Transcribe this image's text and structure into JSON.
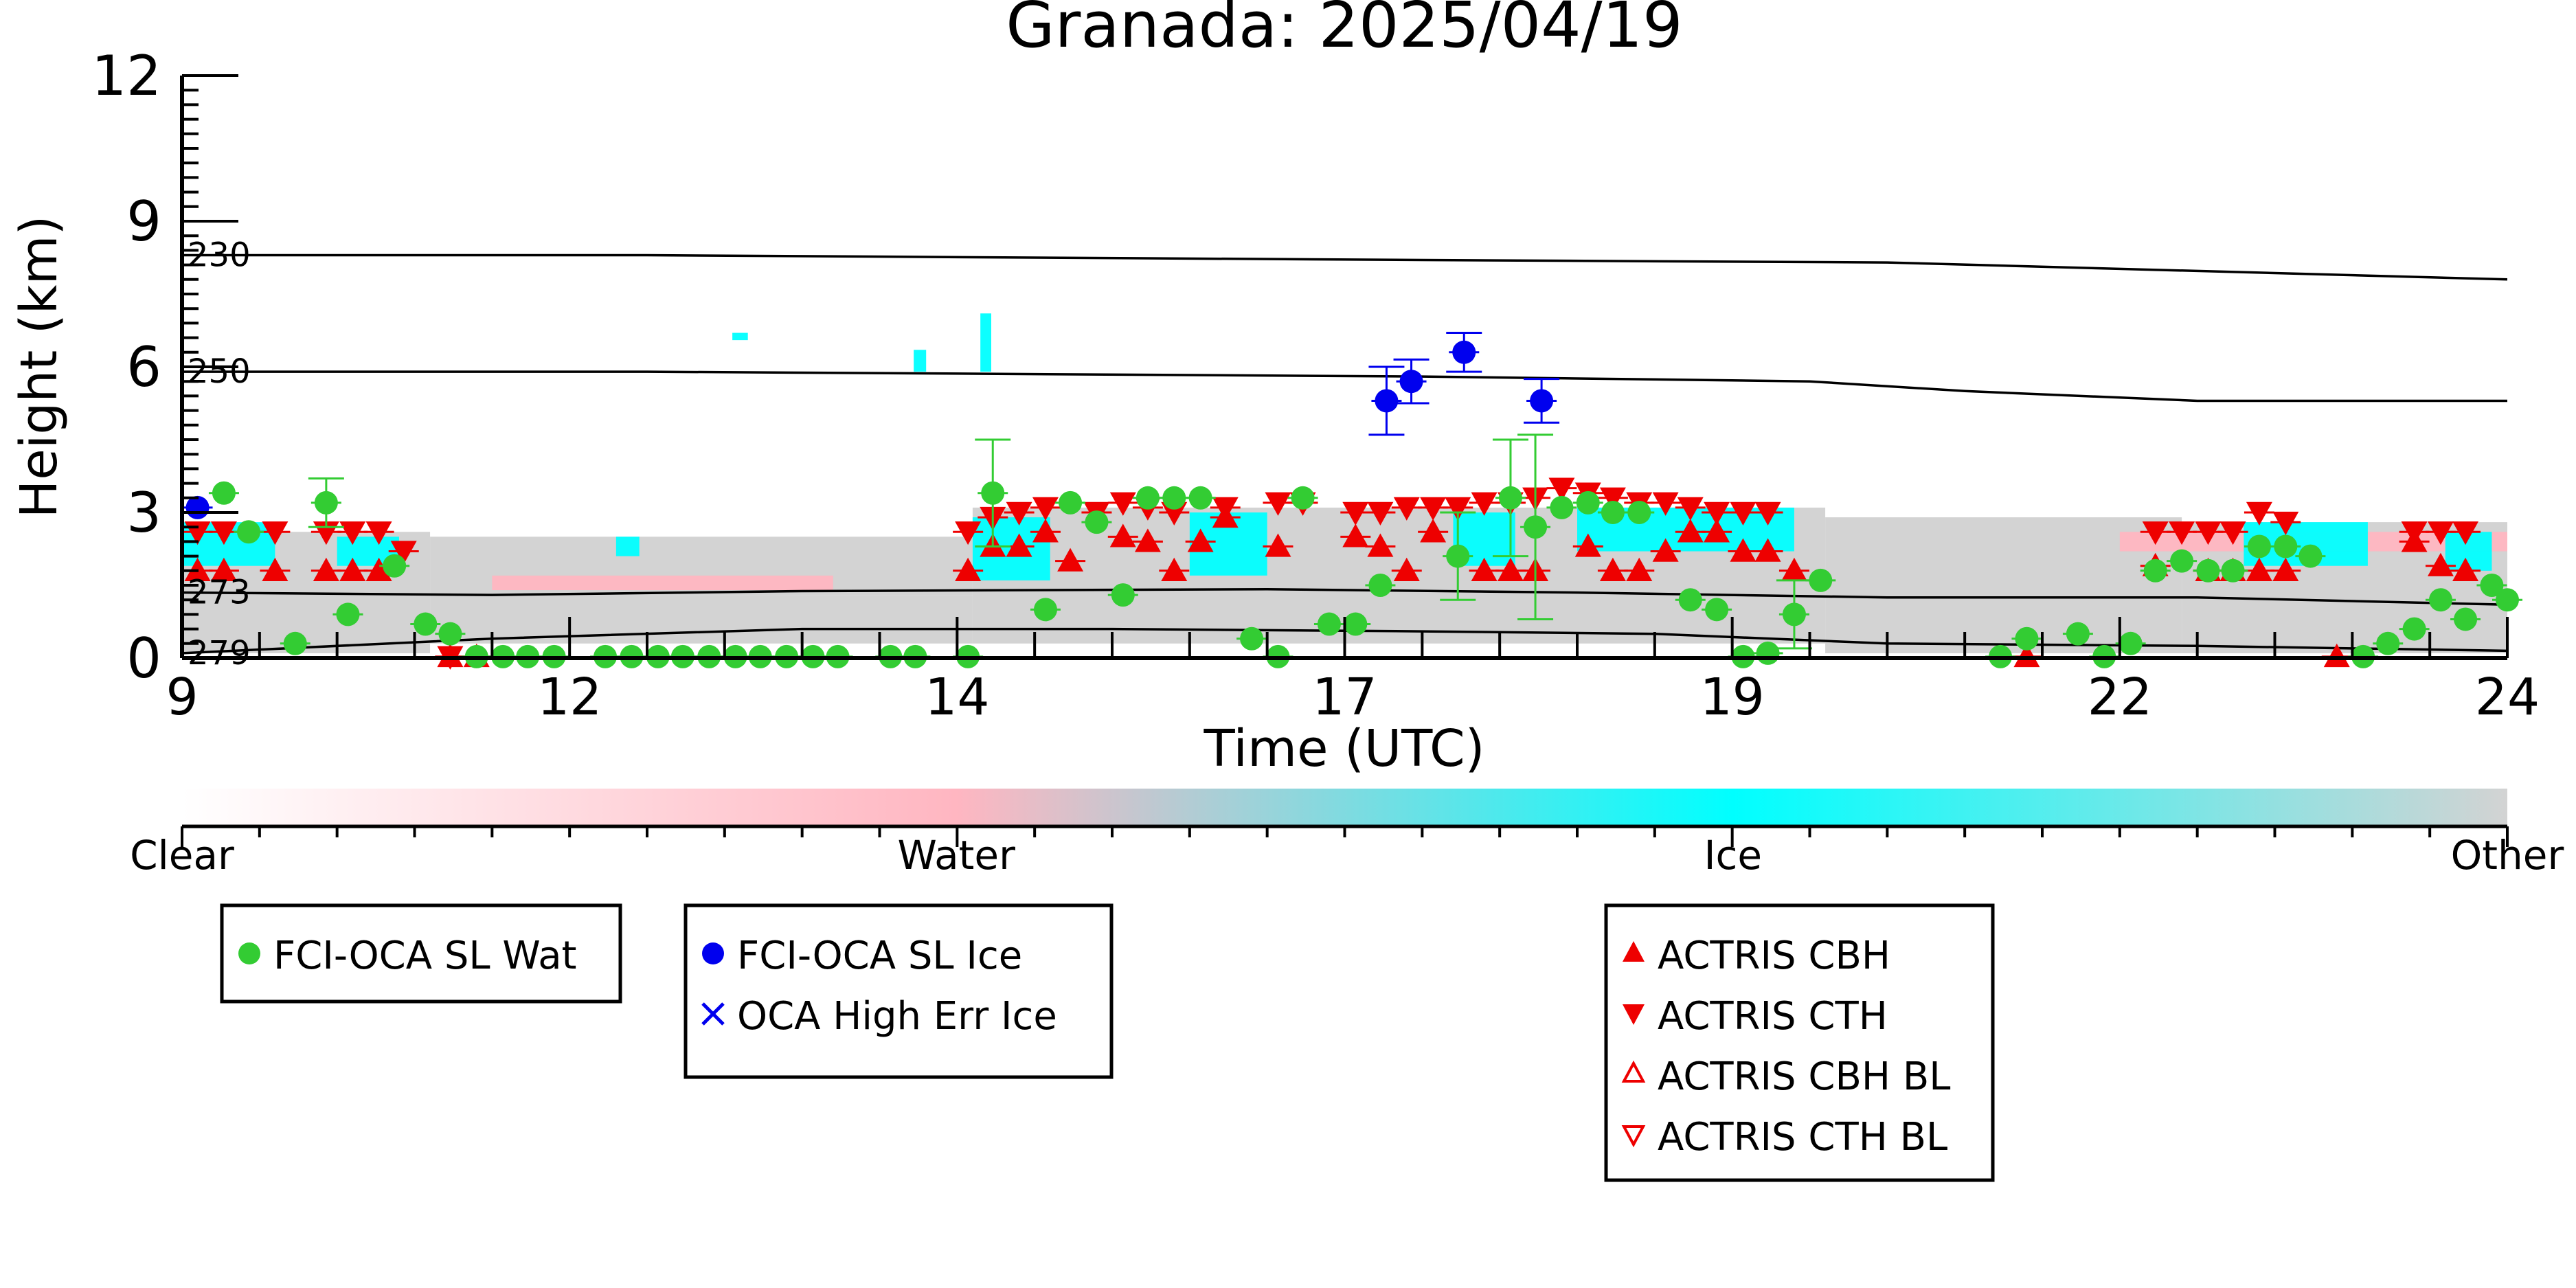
{
  "chart_data": {
    "type": "scatter",
    "title": "Granada: 2025/04/19",
    "xlabel": "Time (UTC)",
    "ylabel": "Height (km)",
    "xlim": [
      9,
      24
    ],
    "ylim": [
      0,
      12
    ],
    "xtick_labels": [
      {
        "value": 9,
        "label": "9"
      },
      {
        "value": 11.5,
        "label": "12"
      },
      {
        "value": 14,
        "label": "14"
      },
      {
        "value": 16.5,
        "label": "17"
      },
      {
        "value": 19,
        "label": "19"
      },
      {
        "value": 21.5,
        "label": "22"
      },
      {
        "value": 24,
        "label": "24"
      }
    ],
    "ytick_labels": [
      {
        "value": 0,
        "label": "0"
      },
      {
        "value": 3,
        "label": "3"
      },
      {
        "value": 6,
        "label": "6"
      },
      {
        "value": 9,
        "label": "9"
      },
      {
        "value": 12,
        "label": "12"
      }
    ],
    "grid": false,
    "isotherms": [
      {
        "label": "230",
        "points": [
          [
            9,
            8.3
          ],
          [
            12,
            8.3
          ],
          [
            17,
            8.2
          ],
          [
            20,
            8.15
          ],
          [
            24,
            7.8
          ]
        ]
      },
      {
        "label": "250",
        "points": [
          [
            9,
            5.9
          ],
          [
            12,
            5.9
          ],
          [
            17,
            5.8
          ],
          [
            19.5,
            5.7
          ],
          [
            20.5,
            5.5
          ],
          [
            22,
            5.3
          ],
          [
            24,
            5.3
          ]
        ]
      },
      {
        "label": "273",
        "points": [
          [
            9,
            1.35
          ],
          [
            11,
            1.3
          ],
          [
            13,
            1.38
          ],
          [
            16,
            1.42
          ],
          [
            18,
            1.35
          ],
          [
            20,
            1.25
          ],
          [
            22,
            1.25
          ],
          [
            24,
            1.1
          ]
        ]
      },
      {
        "label": "279",
        "points": [
          [
            9,
            0.1
          ],
          [
            11,
            0.4
          ],
          [
            13,
            0.6
          ],
          [
            15,
            0.6
          ],
          [
            17,
            0.55
          ],
          [
            18.5,
            0.5
          ],
          [
            20,
            0.3
          ],
          [
            22,
            0.25
          ],
          [
            24,
            0.15
          ]
        ]
      }
    ],
    "colorbar": {
      "stops": [
        {
          "at": 0.0,
          "color": "#ffffff"
        },
        {
          "at": 0.333,
          "color": "#ffb6c1"
        },
        {
          "at": 0.667,
          "color": "#00ffff"
        },
        {
          "at": 1.0,
          "color": "#d3d3d3"
        }
      ],
      "labels": [
        {
          "at": 0.0,
          "text": "Clear"
        },
        {
          "at": 0.333,
          "text": "Water"
        },
        {
          "at": 0.667,
          "text": "Ice"
        },
        {
          "at": 1.0,
          "text": "Other"
        }
      ]
    },
    "class_colors": {
      "water": "#ffb6c1",
      "ice": "#00ffff",
      "other": "#d3d3d3"
    },
    "cloud_layers": [
      {
        "class": "other",
        "x0": 9.0,
        "x1": 10.6,
        "top": 2.6,
        "bottom": 0.1
      },
      {
        "class": "other",
        "x0": 10.6,
        "x1": 14.1,
        "top": 2.5,
        "bottom": 1.3
      },
      {
        "class": "other",
        "x0": 10.6,
        "x1": 14.1,
        "top": 1.3,
        "bottom": 0.3
      },
      {
        "class": "other",
        "x0": 14.1,
        "x1": 19.6,
        "top": 3.1,
        "bottom": 0.3
      },
      {
        "class": "other",
        "x0": 19.6,
        "x1": 21.9,
        "top": 2.9,
        "bottom": 0.1
      },
      {
        "class": "other",
        "x0": 21.9,
        "x1": 24.0,
        "top": 2.8,
        "bottom": 0.1
      },
      {
        "class": "water",
        "x0": 21.5,
        "x1": 24.0,
        "top": 2.6,
        "bottom": 2.2
      },
      {
        "class": "water",
        "x0": 11.0,
        "x1": 13.2,
        "top": 1.7,
        "bottom": 1.4
      },
      {
        "class": "ice",
        "x0": 9.0,
        "x1": 9.6,
        "top": 2.8,
        "bottom": 1.9
      },
      {
        "class": "ice",
        "x0": 10.0,
        "x1": 10.4,
        "top": 2.5,
        "bottom": 1.9
      },
      {
        "class": "ice",
        "x0": 11.8,
        "x1": 11.95,
        "top": 2.5,
        "bottom": 2.1
      },
      {
        "class": "ice",
        "x0": 14.1,
        "x1": 14.6,
        "top": 2.9,
        "bottom": 1.6
      },
      {
        "class": "ice",
        "x0": 15.5,
        "x1": 16.0,
        "top": 3.0,
        "bottom": 1.7
      },
      {
        "class": "ice",
        "x0": 17.2,
        "x1": 17.6,
        "top": 3.0,
        "bottom": 1.9
      },
      {
        "class": "ice",
        "x0": 18.0,
        "x1": 19.4,
        "top": 3.1,
        "bottom": 2.2
      },
      {
        "class": "ice",
        "x0": 22.3,
        "x1": 23.1,
        "top": 2.8,
        "bottom": 1.9
      },
      {
        "class": "ice",
        "x0": 23.6,
        "x1": 23.9,
        "top": 2.6,
        "bottom": 1.8
      },
      {
        "class": "ice",
        "x0": 12.55,
        "x1": 12.65,
        "top": 6.7,
        "bottom": 6.55
      },
      {
        "class": "ice",
        "x0": 13.72,
        "x1": 13.8,
        "top": 6.35,
        "bottom": 5.9
      },
      {
        "class": "ice",
        "x0": 14.15,
        "x1": 14.22,
        "top": 7.1,
        "bottom": 5.9
      }
    ],
    "series": [
      {
        "name": "FCI-OCA SL Wat",
        "marker": "circle",
        "color": "#33cc33",
        "points": [
          {
            "x": 9.27,
            "y": 3.4
          },
          {
            "x": 9.43,
            "y": 2.6
          },
          {
            "x": 9.73,
            "y": 0.3
          },
          {
            "x": 9.93,
            "y": 3.2,
            "err": 0.5
          },
          {
            "x": 10.07,
            "y": 0.9
          },
          {
            "x": 10.37,
            "y": 1.9
          },
          {
            "x": 10.57,
            "y": 0.7
          },
          {
            "x": 10.73,
            "y": 0.5
          },
          {
            "x": 10.9,
            "y": 0.03
          },
          {
            "x": 11.07,
            "y": 0.03
          },
          {
            "x": 11.23,
            "y": 0.03
          },
          {
            "x": 11.4,
            "y": 0.03
          },
          {
            "x": 11.73,
            "y": 0.03
          },
          {
            "x": 11.9,
            "y": 0.03
          },
          {
            "x": 12.07,
            "y": 0.03
          },
          {
            "x": 12.23,
            "y": 0.03
          },
          {
            "x": 12.4,
            "y": 0.03
          },
          {
            "x": 12.57,
            "y": 0.03
          },
          {
            "x": 12.73,
            "y": 0.03
          },
          {
            "x": 12.9,
            "y": 0.03
          },
          {
            "x": 13.07,
            "y": 0.03
          },
          {
            "x": 13.23,
            "y": 0.03
          },
          {
            "x": 13.57,
            "y": 0.03
          },
          {
            "x": 13.73,
            "y": 0.03
          },
          {
            "x": 14.07,
            "y": 0.03
          },
          {
            "x": 14.23,
            "y": 3.4,
            "err": 1.1
          },
          {
            "x": 14.57,
            "y": 1.0
          },
          {
            "x": 14.73,
            "y": 3.2
          },
          {
            "x": 14.9,
            "y": 2.8
          },
          {
            "x": 15.07,
            "y": 1.3
          },
          {
            "x": 15.23,
            "y": 3.3
          },
          {
            "x": 15.4,
            "y": 3.3
          },
          {
            "x": 15.57,
            "y": 3.3
          },
          {
            "x": 15.9,
            "y": 0.4
          },
          {
            "x": 16.07,
            "y": 0.03
          },
          {
            "x": 16.23,
            "y": 3.3
          },
          {
            "x": 16.4,
            "y": 0.7
          },
          {
            "x": 16.57,
            "y": 0.7
          },
          {
            "x": 16.73,
            "y": 1.5
          },
          {
            "x": 17.23,
            "y": 2.1,
            "err": 0.9
          },
          {
            "x": 17.57,
            "y": 3.3,
            "err": 1.2
          },
          {
            "x": 17.73,
            "y": 2.7,
            "err": 1.9
          },
          {
            "x": 17.9,
            "y": 3.1
          },
          {
            "x": 18.07,
            "y": 3.2
          },
          {
            "x": 18.23,
            "y": 3.0
          },
          {
            "x": 18.4,
            "y": 3.0
          },
          {
            "x": 18.73,
            "y": 1.2
          },
          {
            "x": 18.9,
            "y": 1.0
          },
          {
            "x": 19.07,
            "y": 0.03
          },
          {
            "x": 19.23,
            "y": 0.1
          },
          {
            "x": 19.4,
            "y": 0.9,
            "err": 0.7
          },
          {
            "x": 19.57,
            "y": 1.6
          },
          {
            "x": 20.73,
            "y": 0.03
          },
          {
            "x": 20.9,
            "y": 0.4
          },
          {
            "x": 21.23,
            "y": 0.5
          },
          {
            "x": 21.4,
            "y": 0.03
          },
          {
            "x": 21.57,
            "y": 0.3
          },
          {
            "x": 21.73,
            "y": 1.8
          },
          {
            "x": 21.9,
            "y": 2.0
          },
          {
            "x": 22.07,
            "y": 1.8
          },
          {
            "x": 22.23,
            "y": 1.8
          },
          {
            "x": 22.4,
            "y": 2.3
          },
          {
            "x": 22.57,
            "y": 2.3
          },
          {
            "x": 22.73,
            "y": 2.1
          },
          {
            "x": 23.07,
            "y": 0.03
          },
          {
            "x": 23.23,
            "y": 0.3
          },
          {
            "x": 23.4,
            "y": 0.6
          },
          {
            "x": 23.57,
            "y": 1.2
          },
          {
            "x": 23.73,
            "y": 0.8
          },
          {
            "x": 23.9,
            "y": 1.5
          },
          {
            "x": 24.0,
            "y": 1.2
          }
        ]
      },
      {
        "name": "FCI-OCA SL Ice",
        "marker": "circle",
        "color": "#0000ee",
        "points": [
          {
            "x": 9.1,
            "y": 3.1
          },
          {
            "x": 16.77,
            "y": 5.3,
            "err": 0.7
          },
          {
            "x": 16.93,
            "y": 5.7,
            "err": 0.45
          },
          {
            "x": 17.27,
            "y": 6.3,
            "err": 0.4
          },
          {
            "x": 17.77,
            "y": 5.3,
            "err": 0.45
          }
        ]
      },
      {
        "name": "OCA High Err Ice",
        "marker": "x",
        "color": "#0000ee",
        "points": []
      },
      {
        "name": "ACTRIS CBH",
        "marker": "triangle-up",
        "color": "#ee0000",
        "points": [
          {
            "x": 9.1,
            "y": 1.8
          },
          {
            "x": 9.27,
            "y": 1.8
          },
          {
            "x": 9.6,
            "y": 1.8
          },
          {
            "x": 9.93,
            "y": 1.8
          },
          {
            "x": 10.1,
            "y": 1.8
          },
          {
            "x": 10.27,
            "y": 1.8
          },
          {
            "x": 10.73,
            "y": 0.03
          },
          {
            "x": 10.9,
            "y": 0.03
          },
          {
            "x": 14.07,
            "y": 1.8
          },
          {
            "x": 14.23,
            "y": 2.3
          },
          {
            "x": 14.4,
            "y": 2.3
          },
          {
            "x": 14.57,
            "y": 2.6
          },
          {
            "x": 14.73,
            "y": 2.0
          },
          {
            "x": 15.07,
            "y": 2.5
          },
          {
            "x": 15.23,
            "y": 2.4
          },
          {
            "x": 15.4,
            "y": 1.8
          },
          {
            "x": 15.57,
            "y": 2.4
          },
          {
            "x": 15.73,
            "y": 2.9
          },
          {
            "x": 16.07,
            "y": 2.3
          },
          {
            "x": 16.57,
            "y": 2.5
          },
          {
            "x": 16.73,
            "y": 2.3
          },
          {
            "x": 16.9,
            "y": 1.8
          },
          {
            "x": 17.07,
            "y": 2.6
          },
          {
            "x": 17.4,
            "y": 1.8
          },
          {
            "x": 17.57,
            "y": 1.8
          },
          {
            "x": 17.73,
            "y": 1.8
          },
          {
            "x": 18.07,
            "y": 2.3
          },
          {
            "x": 18.23,
            "y": 1.8
          },
          {
            "x": 18.4,
            "y": 1.8
          },
          {
            "x": 18.57,
            "y": 2.2
          },
          {
            "x": 18.73,
            "y": 2.6
          },
          {
            "x": 18.9,
            "y": 2.6
          },
          {
            "x": 19.07,
            "y": 2.2
          },
          {
            "x": 19.23,
            "y": 2.2
          },
          {
            "x": 19.4,
            "y": 1.8
          },
          {
            "x": 20.9,
            "y": 0.03
          },
          {
            "x": 21.73,
            "y": 1.9
          },
          {
            "x": 22.07,
            "y": 1.8
          },
          {
            "x": 22.23,
            "y": 1.8
          },
          {
            "x": 22.4,
            "y": 1.8
          },
          {
            "x": 22.57,
            "y": 1.8
          },
          {
            "x": 22.9,
            "y": 0.03
          },
          {
            "x": 23.4,
            "y": 2.4
          },
          {
            "x": 23.57,
            "y": 1.9
          },
          {
            "x": 23.73,
            "y": 1.8
          }
        ]
      },
      {
        "name": "ACTRIS CTH",
        "marker": "triangle-down",
        "color": "#ee0000",
        "points": [
          {
            "x": 9.1,
            "y": 2.6
          },
          {
            "x": 9.27,
            "y": 2.6
          },
          {
            "x": 9.6,
            "y": 2.6
          },
          {
            "x": 9.93,
            "y": 2.6
          },
          {
            "x": 10.1,
            "y": 2.6
          },
          {
            "x": 10.27,
            "y": 2.6
          },
          {
            "x": 10.43,
            "y": 2.2
          },
          {
            "x": 10.73,
            "y": 0.03
          },
          {
            "x": 14.07,
            "y": 2.6
          },
          {
            "x": 14.23,
            "y": 2.9
          },
          {
            "x": 14.4,
            "y": 3.0
          },
          {
            "x": 14.57,
            "y": 3.1
          },
          {
            "x": 14.9,
            "y": 3.0
          },
          {
            "x": 15.07,
            "y": 3.2
          },
          {
            "x": 15.23,
            "y": 3.1
          },
          {
            "x": 15.4,
            "y": 3.0
          },
          {
            "x": 15.73,
            "y": 3.1
          },
          {
            "x": 16.07,
            "y": 3.2
          },
          {
            "x": 16.23,
            "y": 3.2
          },
          {
            "x": 16.57,
            "y": 3.0
          },
          {
            "x": 16.73,
            "y": 3.0
          },
          {
            "x": 16.9,
            "y": 3.1
          },
          {
            "x": 17.07,
            "y": 3.1
          },
          {
            "x": 17.23,
            "y": 3.1
          },
          {
            "x": 17.4,
            "y": 3.2
          },
          {
            "x": 17.57,
            "y": 3.2
          },
          {
            "x": 17.73,
            "y": 3.3
          },
          {
            "x": 17.9,
            "y": 3.5
          },
          {
            "x": 18.07,
            "y": 3.4
          },
          {
            "x": 18.23,
            "y": 3.3
          },
          {
            "x": 18.4,
            "y": 3.2
          },
          {
            "x": 18.57,
            "y": 3.2
          },
          {
            "x": 18.73,
            "y": 3.1
          },
          {
            "x": 18.9,
            "y": 3.0
          },
          {
            "x": 19.07,
            "y": 3.0
          },
          {
            "x": 19.23,
            "y": 3.0
          },
          {
            "x": 21.73,
            "y": 2.6
          },
          {
            "x": 21.9,
            "y": 2.6
          },
          {
            "x": 22.07,
            "y": 2.6
          },
          {
            "x": 22.23,
            "y": 2.6
          },
          {
            "x": 22.4,
            "y": 3.0
          },
          {
            "x": 22.57,
            "y": 2.8
          },
          {
            "x": 23.4,
            "y": 2.6
          },
          {
            "x": 23.57,
            "y": 2.6
          },
          {
            "x": 23.73,
            "y": 2.6
          }
        ]
      },
      {
        "name": "ACTRIS CBH BL",
        "marker": "triangle-up-open",
        "color": "#ee0000",
        "points": []
      },
      {
        "name": "ACTRIS CTH BL",
        "marker": "triangle-down-open",
        "color": "#ee0000",
        "points": []
      }
    ],
    "legend_groups": [
      {
        "entries": [
          {
            "series": 0,
            "label": "FCI-OCA SL Wat"
          }
        ]
      },
      {
        "entries": [
          {
            "series": 1,
            "label": "FCI-OCA SL Ice"
          },
          {
            "series": 2,
            "label": "OCA High Err Ice"
          }
        ]
      },
      {
        "entries": [
          {
            "series": 3,
            "label": "ACTRIS CBH"
          },
          {
            "series": 4,
            "label": "ACTRIS CTH"
          },
          {
            "series": 5,
            "label": "ACTRIS CBH BL"
          },
          {
            "series": 6,
            "label": "ACTRIS CTH BL"
          }
        ]
      }
    ]
  }
}
